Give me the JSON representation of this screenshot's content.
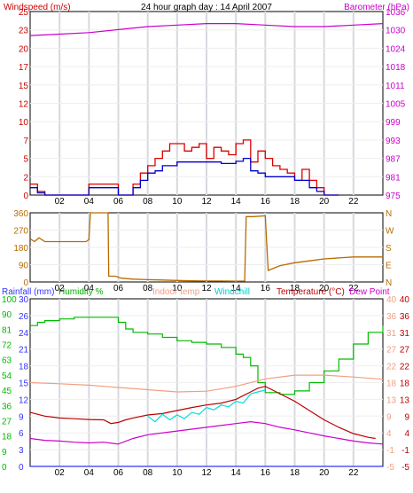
{
  "header": {
    "left_label": "Windspeed (m/s)",
    "title": "24 hour graph day : 14 April 2007",
    "right_label": "Barometer (hPa)"
  },
  "legend3": {
    "rainfall": "Rainfall (mm)",
    "humidity": "Humidity %",
    "indoor": "Indoor temp",
    "windchill": "Windchill",
    "temperature": "Temperature (°C)",
    "dewpoint": "Dew Point"
  },
  "colors": {
    "wind_axis": "#cc0000",
    "baro_axis": "#cc00cc",
    "wind_gust": "#dd0000",
    "wind_avg": "#0000cc",
    "barometer": "#cc00cc",
    "direction": "#b86b00",
    "rainfall": "#3333ff",
    "humidity": "#00bb00",
    "indoor": "#f0a080",
    "windchill": "#00dddd",
    "temperature": "#bb0000",
    "dewpoint": "#cc00cc",
    "grid": "#d8d8e0"
  },
  "chart_data": [
    {
      "type": "line",
      "x_ticks": [
        "02",
        "04",
        "06",
        "08",
        "10",
        "12",
        "14",
        "16",
        "18",
        "20",
        "22"
      ],
      "y_left_ticks": [
        "0",
        "2",
        "5",
        "7",
        "10",
        "12",
        "15",
        "17",
        "20",
        "23",
        "25"
      ],
      "y_right_ticks": [
        "975",
        "981",
        "987",
        "993",
        "999",
        "1005",
        "1011",
        "1018",
        "1024",
        "1030",
        "1036"
      ],
      "xlim": [
        0,
        24
      ],
      "ylim_left": [
        0,
        25
      ],
      "ylim_right": [
        975,
        1036
      ],
      "series": [
        {
          "key": "barometer",
          "axis": "right",
          "x": [
            0,
            2,
            4,
            6,
            8,
            10,
            12,
            14,
            16,
            18,
            20,
            22,
            24
          ],
          "y": [
            1028,
            1028.5,
            1029,
            1030,
            1031,
            1031.5,
            1032,
            1032,
            1031.5,
            1031,
            1031,
            1031.5,
            1032
          ]
        },
        {
          "key": "gust",
          "axis": "left",
          "x": [
            0,
            0.5,
            1,
            3.5,
            4,
            5,
            6,
            7,
            7.5,
            8,
            8.5,
            9,
            9.5,
            10,
            10.5,
            11,
            11.5,
            12,
            12.5,
            13,
            13.5,
            14,
            14.5,
            15,
            15.5,
            16,
            16.5,
            17,
            17.5,
            18,
            18.5,
            19,
            19.5,
            20,
            21
          ],
          "y": [
            1.5,
            0.5,
            0,
            0,
            1.5,
            1.5,
            0,
            1.5,
            3,
            4,
            5,
            6,
            7,
            7,
            6,
            6.5,
            7,
            5,
            6.5,
            6,
            5.5,
            7,
            7.5,
            4.5,
            6,
            5,
            4,
            3.5,
            3,
            2,
            3.5,
            2,
            1,
            0,
            0
          ]
        },
        {
          "key": "average",
          "axis": "left",
          "x": [
            0,
            0.5,
            1,
            3.5,
            4,
            5,
            6,
            7,
            7.5,
            8,
            8.5,
            9,
            9.5,
            10,
            11,
            12,
            13,
            14,
            14.5,
            15,
            15.5,
            16,
            17,
            18,
            18.5,
            19,
            19.5,
            20,
            21
          ],
          "y": [
            1,
            0.3,
            0,
            0,
            1,
            1,
            0,
            1,
            2,
            3,
            3.3,
            4,
            4,
            4.5,
            4.5,
            4.5,
            4.3,
            4.6,
            5,
            3.3,
            3,
            2.5,
            2.5,
            2,
            2,
            1,
            0.5,
            0,
            0
          ]
        }
      ]
    },
    {
      "type": "line",
      "x_ticks": [
        "02",
        "04",
        "06",
        "08",
        "10",
        "12",
        "14",
        "16",
        "18",
        "20",
        "22"
      ],
      "y_left_ticks": [
        "360",
        "270",
        "180",
        "90",
        "0"
      ],
      "y_right_ticks": [
        "N",
        "W",
        "S",
        "E",
        "N"
      ],
      "xlim": [
        0,
        24
      ],
      "ylim": [
        0,
        360
      ],
      "series": [
        {
          "key": "direction",
          "x": [
            0,
            0.3,
            0.6,
            1,
            3.8,
            4,
            4.1,
            5.3,
            5.35,
            5.8,
            6.2,
            7,
            8,
            9,
            10,
            11,
            12,
            13,
            14,
            14.6,
            14.7,
            15.2,
            16,
            16.2,
            17,
            18,
            19,
            20,
            21,
            22,
            24
          ],
          "y": [
            225,
            210,
            230,
            210,
            210,
            220,
            360,
            360,
            30,
            30,
            20,
            15,
            12,
            10,
            8,
            6,
            5,
            5,
            4,
            5,
            340,
            340,
            345,
            60,
            85,
            100,
            110,
            120,
            125,
            130,
            130
          ]
        }
      ]
    },
    {
      "type": "line",
      "x_ticks": [
        "02",
        "04",
        "06",
        "08",
        "10",
        "12",
        "14",
        "16",
        "18",
        "20",
        "22"
      ],
      "y_rain_ticks": [
        "100",
        "90",
        "81",
        "72",
        "63",
        "54",
        "45",
        "36",
        "27",
        "18",
        "9",
        "0"
      ],
      "y_humidity_ticks": [
        "30",
        "26",
        "24",
        "21",
        "18",
        "15",
        "12",
        "9",
        "6",
        "3",
        "0"
      ],
      "y_temp_right_ticks": [
        "40",
        "36",
        "31",
        "27",
        "22",
        "18",
        "13",
        "9",
        "4",
        "-1",
        "-5"
      ],
      "y_dew_right_ticks": [
        "40",
        "36",
        "31",
        "27",
        "22",
        "18",
        "13",
        "9",
        "4",
        "-1",
        "-5"
      ],
      "xlim": [
        0,
        24
      ],
      "ylim": [
        -5,
        40
      ],
      "series": [
        {
          "key": "rainfall",
          "x": [
            0,
            24
          ],
          "y": [
            0,
            0
          ]
        },
        {
          "key": "humidity",
          "x": [
            0,
            0.5,
            1,
            2,
            3,
            4,
            5,
            5.5,
            6,
            6.5,
            7,
            8,
            9,
            10,
            11,
            12,
            13,
            14,
            14.5,
            15,
            15.5,
            16,
            16.5,
            17,
            18,
            19,
            20,
            21,
            22,
            23,
            24
          ],
          "y": [
            84,
            86,
            87,
            88,
            89,
            89,
            89,
            89,
            86,
            82,
            80,
            79,
            77,
            75,
            74,
            73,
            71,
            67,
            65,
            60,
            50,
            44,
            44,
            43,
            45,
            50,
            57,
            64,
            73,
            80,
            84
          ]
        },
        {
          "key": "indoor",
          "x": [
            0,
            2,
            4,
            6,
            8,
            10,
            12,
            14,
            16,
            18,
            20,
            22,
            24
          ],
          "y": [
            17.5,
            17.2,
            16.8,
            16.2,
            15.6,
            15.0,
            15.2,
            16.5,
            18.5,
            19.5,
            19.5,
            19.0,
            18.4
          ]
        },
        {
          "key": "temperature",
          "x": [
            0,
            1,
            2,
            3,
            4,
            5,
            5.5,
            6,
            6.5,
            7,
            8,
            9,
            10,
            11,
            12,
            13,
            14,
            14.5,
            15,
            15.5,
            16,
            17,
            18,
            19,
            20,
            21,
            22,
            23,
            23.5
          ],
          "y": [
            9.5,
            8.5,
            8.0,
            7.8,
            7.6,
            7.5,
            6.5,
            6.8,
            7.5,
            8,
            8.8,
            9.2,
            10.0,
            10.8,
            11.5,
            12.0,
            13.0,
            14.0,
            15.0,
            16.0,
            16.5,
            14.5,
            12.5,
            10.0,
            7.5,
            5.5,
            3.8,
            2.8,
            2.5
          ]
        },
        {
          "key": "windchill",
          "x": [
            8,
            8.5,
            9,
            9.5,
            10,
            10.5,
            11,
            11.5,
            12,
            12.5,
            13,
            13.5,
            14,
            14.5,
            15,
            15.5,
            16
          ],
          "y": [
            8.5,
            7.0,
            9.0,
            7.5,
            8.8,
            7.8,
            9.5,
            9.0,
            10.8,
            10.2,
            11.5,
            11.0,
            12.5,
            12.0,
            14.5,
            15.0,
            15.5
          ]
        },
        {
          "key": "dewpoint",
          "x": [
            0,
            1,
            2,
            3,
            4,
            5,
            6,
            7,
            8,
            10,
            12,
            14,
            15,
            16,
            17,
            18,
            19,
            20,
            21,
            22,
            23,
            24
          ],
          "y": [
            2.5,
            2.0,
            1.8,
            1.5,
            1.3,
            1.5,
            1.0,
            2.5,
            3.5,
            4.5,
            5.5,
            6.5,
            7.0,
            6.5,
            5.5,
            4.8,
            4.0,
            3.2,
            2.5,
            1.8,
            1.3,
            1.0
          ]
        }
      ]
    }
  ]
}
